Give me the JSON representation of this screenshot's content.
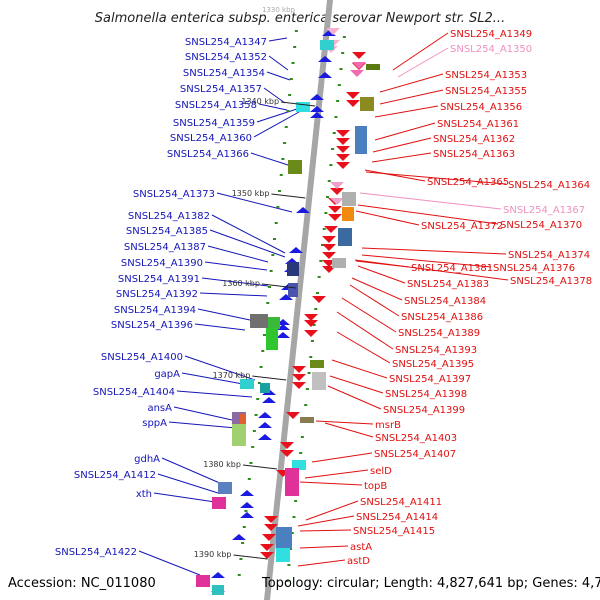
{
  "title": "Salmonella enterica subsp. enterica serovar Newport str. SL2...",
  "footer": {
    "accession": "Accession: NC_011080",
    "summary": "Topology: circular; Length: 4,827,641 bp; Genes: 4,721"
  },
  "colors": {
    "left_label": "#1515b8",
    "right_label": "#e01010",
    "right_label_faded": "#f090c0",
    "backbone": "#a6a6a6",
    "marker": "#2e8b1e"
  },
  "scale_marks": [
    "1340 kbp",
    "1350 kbp",
    "1360 kbp",
    "1370 kbp",
    "1380 kbp",
    "1390 kbp"
  ],
  "left_genes": [
    "SNSL254_A1347",
    "SNSL254_A1352",
    "SNSL254_A1354",
    "SNSL254_A1357",
    "SNSL254_A1358",
    "SNSL254_A1359",
    "SNSL254_A1360",
    "SNSL254_A1366",
    "SNSL254_A1373",
    "SNSL254_A1382",
    "SNSL254_A1385",
    "SNSL254_A1387",
    "SNSL254_A1390",
    "SNSL254_A1391",
    "SNSL254_A1392",
    "SNSL254_A1394",
    "SNSL254_A1396",
    "SNSL254_A1400",
    "gapA",
    "SNSL254_A1404",
    "ansA",
    "sppA",
    "gdhA",
    "SNSL254_A1412",
    "xth",
    "SNSL254_A1422"
  ],
  "right_genes": [
    "SNSL254_A1349",
    "SNSL254_A1350",
    "SNSL254_A1353",
    "SNSL254_A1355",
    "SNSL254_A1356",
    "SNSL254_A1361",
    "SNSL254_A1362",
    "SNSL254_A1363",
    "SNSL254_A1365",
    "SNSL254_A1364",
    "SNSL254_A1367",
    "SNSL254_A1372",
    "SNSL254_A1370",
    "SNSL254_A1374",
    "SNSL254_A1381",
    "SNSL254_A1376",
    "SNSL254_A1378",
    "SNSL254_A1383",
    "SNSL254_A1384",
    "SNSL254_A1386",
    "SNSL254_A1389",
    "SNSL254_A1393",
    "SNSL254_A1395",
    "SNSL254_A1397",
    "SNSL254_A1398",
    "SNSL254_A1399",
    "msrB",
    "SNSL254_A1403",
    "SNSL254_A1407",
    "selD",
    "topB",
    "SNSL254_A1411",
    "SNSL254_A1414",
    "SNSL254_A1415",
    "astA",
    "astD"
  ]
}
